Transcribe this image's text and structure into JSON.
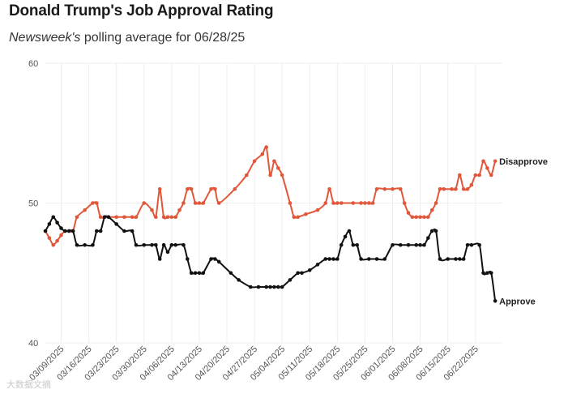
{
  "header": {
    "title": "Donald Trump's Job Approval Rating",
    "subtitle_publication": "Newsweek's",
    "subtitle_rest": " polling average for 06/28/25"
  },
  "watermark": "大数据文摘",
  "colors": {
    "approve": "#111111",
    "disapprove": "#e0573a",
    "grid": "#eeeeee",
    "axis_text": "#555555"
  },
  "chart_data": {
    "type": "line",
    "title": "Donald Trump's Job Approval Rating",
    "subtitle": "Newsweek's polling average for 06/28/25",
    "xlabel": "",
    "ylabel": "",
    "ylim": [
      40,
      60
    ],
    "xlim": [
      "2025-03-05",
      "2025-06-28"
    ],
    "y_ticks": [
      40,
      50,
      60
    ],
    "x_tick_labels": [
      "03/09/2025",
      "03/16/2025",
      "03/23/2025",
      "03/30/2025",
      "04/06/2025",
      "04/13/2025",
      "04/20/2025",
      "04/27/2025",
      "05/04/2025",
      "05/11/2025",
      "05/18/2025",
      "05/25/2025",
      "06/01/2025",
      "06/08/2025",
      "06/15/2025",
      "06/22/2025"
    ],
    "x_tick_dates": [
      "2025-03-09",
      "2025-03-16",
      "2025-03-23",
      "2025-03-30",
      "2025-04-06",
      "2025-04-13",
      "2025-04-20",
      "2025-04-27",
      "2025-05-04",
      "2025-05-11",
      "2025-05-18",
      "2025-05-25",
      "2025-06-01",
      "2025-06-08",
      "2025-06-15",
      "2025-06-22"
    ],
    "grid": true,
    "legend": "direct labels at line ends",
    "series": [
      {
        "name": "Disapprove",
        "color": "#e0573a",
        "points": [
          {
            "x": "2025-03-05",
            "y": 48
          },
          {
            "x": "2025-03-06",
            "y": 47.5
          },
          {
            "x": "2025-03-07",
            "y": 47
          },
          {
            "x": "2025-03-08",
            "y": 47.3
          },
          {
            "x": "2025-03-09",
            "y": 47.7
          },
          {
            "x": "2025-03-10",
            "y": 48
          },
          {
            "x": "2025-03-11",
            "y": 48
          },
          {
            "x": "2025-03-12",
            "y": 48
          },
          {
            "x": "2025-03-13",
            "y": 49
          },
          {
            "x": "2025-03-15",
            "y": 49.5
          },
          {
            "x": "2025-03-17",
            "y": 50
          },
          {
            "x": "2025-03-18",
            "y": 50
          },
          {
            "x": "2025-03-19",
            "y": 49
          },
          {
            "x": "2025-03-21",
            "y": 49
          },
          {
            "x": "2025-03-23",
            "y": 49
          },
          {
            "x": "2025-03-25",
            "y": 49
          },
          {
            "x": "2025-03-27",
            "y": 49
          },
          {
            "x": "2025-03-28",
            "y": 49
          },
          {
            "x": "2025-03-30",
            "y": 50
          },
          {
            "x": "2025-04-01",
            "y": 49.5
          },
          {
            "x": "2025-04-02",
            "y": 49
          },
          {
            "x": "2025-04-03",
            "y": 51
          },
          {
            "x": "2025-04-04",
            "y": 49
          },
          {
            "x": "2025-04-05",
            "y": 49
          },
          {
            "x": "2025-04-06",
            "y": 49
          },
          {
            "x": "2025-04-07",
            "y": 49
          },
          {
            "x": "2025-04-08",
            "y": 49.5
          },
          {
            "x": "2025-04-09",
            "y": 50
          },
          {
            "x": "2025-04-10",
            "y": 51
          },
          {
            "x": "2025-04-11",
            "y": 51
          },
          {
            "x": "2025-04-12",
            "y": 50
          },
          {
            "x": "2025-04-13",
            "y": 50
          },
          {
            "x": "2025-04-14",
            "y": 50
          },
          {
            "x": "2025-04-16",
            "y": 51
          },
          {
            "x": "2025-04-17",
            "y": 51
          },
          {
            "x": "2025-04-18",
            "y": 50
          },
          {
            "x": "2025-04-22",
            "y": 51
          },
          {
            "x": "2025-04-25",
            "y": 52
          },
          {
            "x": "2025-04-27",
            "y": 53
          },
          {
            "x": "2025-04-29",
            "y": 53.5
          },
          {
            "x": "2025-04-30",
            "y": 54
          },
          {
            "x": "2025-05-01",
            "y": 52
          },
          {
            "x": "2025-05-02",
            "y": 53
          },
          {
            "x": "2025-05-03",
            "y": 52.5
          },
          {
            "x": "2025-05-04",
            "y": 52
          },
          {
            "x": "2025-05-06",
            "y": 50
          },
          {
            "x": "2025-05-07",
            "y": 49
          },
          {
            "x": "2025-05-08",
            "y": 49
          },
          {
            "x": "2025-05-10",
            "y": 49.2
          },
          {
            "x": "2025-05-13",
            "y": 49.5
          },
          {
            "x": "2025-05-15",
            "y": 50
          },
          {
            "x": "2025-05-16",
            "y": 51
          },
          {
            "x": "2025-05-17",
            "y": 50
          },
          {
            "x": "2025-05-18",
            "y": 50
          },
          {
            "x": "2025-05-19",
            "y": 50
          },
          {
            "x": "2025-05-22",
            "y": 50
          },
          {
            "x": "2025-05-24",
            "y": 50
          },
          {
            "x": "2025-05-25",
            "y": 50
          },
          {
            "x": "2025-05-26",
            "y": 50
          },
          {
            "x": "2025-05-27",
            "y": 50
          },
          {
            "x": "2025-05-28",
            "y": 51
          },
          {
            "x": "2025-05-30",
            "y": 51
          },
          {
            "x": "2025-06-01",
            "y": 51
          },
          {
            "x": "2025-06-03",
            "y": 51
          },
          {
            "x": "2025-06-04",
            "y": 50
          },
          {
            "x": "2025-06-05",
            "y": 49.3
          },
          {
            "x": "2025-06-06",
            "y": 49
          },
          {
            "x": "2025-06-07",
            "y": 49
          },
          {
            "x": "2025-06-08",
            "y": 49
          },
          {
            "x": "2025-06-09",
            "y": 49
          },
          {
            "x": "2025-06-10",
            "y": 49
          },
          {
            "x": "2025-06-11",
            "y": 49.5
          },
          {
            "x": "2025-06-12",
            "y": 50
          },
          {
            "x": "2025-06-13",
            "y": 51
          },
          {
            "x": "2025-06-14",
            "y": 51
          },
          {
            "x": "2025-06-16",
            "y": 51
          },
          {
            "x": "2025-06-17",
            "y": 51
          },
          {
            "x": "2025-06-18",
            "y": 52
          },
          {
            "x": "2025-06-19",
            "y": 51
          },
          {
            "x": "2025-06-20",
            "y": 51
          },
          {
            "x": "2025-06-21",
            "y": 51.3
          },
          {
            "x": "2025-06-22",
            "y": 52
          },
          {
            "x": "2025-06-23",
            "y": 52
          },
          {
            "x": "2025-06-24",
            "y": 53
          },
          {
            "x": "2025-06-25",
            "y": 52.5
          },
          {
            "x": "2025-06-26",
            "y": 52
          },
          {
            "x": "2025-06-27",
            "y": 53
          }
        ]
      },
      {
        "name": "Approve",
        "color": "#111111",
        "points": [
          {
            "x": "2025-03-05",
            "y": 48
          },
          {
            "x": "2025-03-06",
            "y": 48.5
          },
          {
            "x": "2025-03-07",
            "y": 49
          },
          {
            "x": "2025-03-08",
            "y": 48.6
          },
          {
            "x": "2025-03-09",
            "y": 48.2
          },
          {
            "x": "2025-03-10",
            "y": 48
          },
          {
            "x": "2025-03-11",
            "y": 48
          },
          {
            "x": "2025-03-12",
            "y": 48
          },
          {
            "x": "2025-03-13",
            "y": 47
          },
          {
            "x": "2025-03-15",
            "y": 47
          },
          {
            "x": "2025-03-17",
            "y": 47
          },
          {
            "x": "2025-03-18",
            "y": 48
          },
          {
            "x": "2025-03-19",
            "y": 48
          },
          {
            "x": "2025-03-20",
            "y": 49
          },
          {
            "x": "2025-03-21",
            "y": 49
          },
          {
            "x": "2025-03-23",
            "y": 48.5
          },
          {
            "x": "2025-03-25",
            "y": 48
          },
          {
            "x": "2025-03-27",
            "y": 48
          },
          {
            "x": "2025-03-28",
            "y": 47
          },
          {
            "x": "2025-03-30",
            "y": 47
          },
          {
            "x": "2025-04-01",
            "y": 47
          },
          {
            "x": "2025-04-02",
            "y": 47
          },
          {
            "x": "2025-04-03",
            "y": 46
          },
          {
            "x": "2025-04-04",
            "y": 47
          },
          {
            "x": "2025-04-05",
            "y": 46.5
          },
          {
            "x": "2025-04-06",
            "y": 47
          },
          {
            "x": "2025-04-07",
            "y": 47
          },
          {
            "x": "2025-04-09",
            "y": 47
          },
          {
            "x": "2025-04-10",
            "y": 46
          },
          {
            "x": "2025-04-11",
            "y": 45
          },
          {
            "x": "2025-04-12",
            "y": 45
          },
          {
            "x": "2025-04-13",
            "y": 45
          },
          {
            "x": "2025-04-14",
            "y": 45
          },
          {
            "x": "2025-04-16",
            "y": 46
          },
          {
            "x": "2025-04-17",
            "y": 46
          },
          {
            "x": "2025-04-18",
            "y": 45.8
          },
          {
            "x": "2025-04-21",
            "y": 45
          },
          {
            "x": "2025-04-23",
            "y": 44.5
          },
          {
            "x": "2025-04-26",
            "y": 44
          },
          {
            "x": "2025-04-28",
            "y": 44
          },
          {
            "x": "2025-04-30",
            "y": 44
          },
          {
            "x": "2025-05-01",
            "y": 44
          },
          {
            "x": "2025-05-02",
            "y": 44
          },
          {
            "x": "2025-05-03",
            "y": 44
          },
          {
            "x": "2025-05-04",
            "y": 44
          },
          {
            "x": "2025-05-06",
            "y": 44.5
          },
          {
            "x": "2025-05-08",
            "y": 45
          },
          {
            "x": "2025-05-09",
            "y": 45
          },
          {
            "x": "2025-05-11",
            "y": 45.2
          },
          {
            "x": "2025-05-13",
            "y": 45.6
          },
          {
            "x": "2025-05-15",
            "y": 46
          },
          {
            "x": "2025-05-16",
            "y": 46
          },
          {
            "x": "2025-05-17",
            "y": 46
          },
          {
            "x": "2025-05-18",
            "y": 46
          },
          {
            "x": "2025-05-19",
            "y": 47
          },
          {
            "x": "2025-05-20",
            "y": 47.6
          },
          {
            "x": "2025-05-21",
            "y": 48
          },
          {
            "x": "2025-05-22",
            "y": 47
          },
          {
            "x": "2025-05-23",
            "y": 47
          },
          {
            "x": "2025-05-24",
            "y": 46
          },
          {
            "x": "2025-05-26",
            "y": 46
          },
          {
            "x": "2025-05-28",
            "y": 46
          },
          {
            "x": "2025-05-30",
            "y": 46
          },
          {
            "x": "2025-06-01",
            "y": 47
          },
          {
            "x": "2025-06-03",
            "y": 47
          },
          {
            "x": "2025-06-05",
            "y": 47
          },
          {
            "x": "2025-06-07",
            "y": 47
          },
          {
            "x": "2025-06-08",
            "y": 47
          },
          {
            "x": "2025-06-09",
            "y": 47
          },
          {
            "x": "2025-06-10",
            "y": 47.5
          },
          {
            "x": "2025-06-11",
            "y": 48
          },
          {
            "x": "2025-06-12",
            "y": 48
          },
          {
            "x": "2025-06-13",
            "y": 46
          },
          {
            "x": "2025-06-15",
            "y": 46
          },
          {
            "x": "2025-06-17",
            "y": 46
          },
          {
            "x": "2025-06-18",
            "y": 46
          },
          {
            "x": "2025-06-19",
            "y": 46
          },
          {
            "x": "2025-06-20",
            "y": 47
          },
          {
            "x": "2025-06-21",
            "y": 47
          },
          {
            "x": "2025-06-23",
            "y": 47
          },
          {
            "x": "2025-06-24",
            "y": 45
          },
          {
            "x": "2025-06-25",
            "y": 45
          },
          {
            "x": "2025-06-26",
            "y": 45
          },
          {
            "x": "2025-06-27",
            "y": 43
          }
        ]
      }
    ]
  }
}
